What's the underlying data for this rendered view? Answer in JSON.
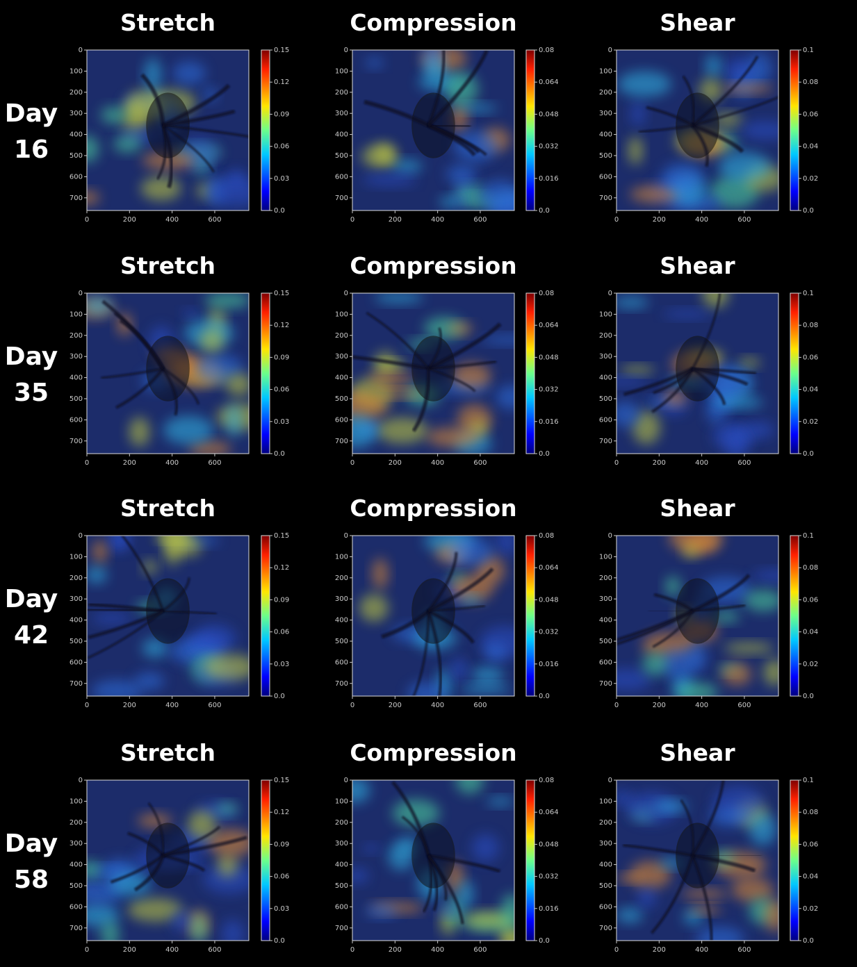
{
  "rows": [
    {
      "label": [
        "Day",
        "16"
      ],
      "panels": [
        {
          "title": "Stretch",
          "xlim": [
            0,
            760
          ],
          "ylim": [
            0,
            760
          ],
          "y_inverted": true,
          "xticks": [
            0,
            200,
            400,
            600
          ],
          "yticks": [
            0,
            100,
            200,
            300,
            400,
            500,
            600,
            700
          ],
          "colorbar_lim": [
            0,
            0.15
          ],
          "colorbar_ticks": [
            {
              "value": 0,
              "label": "0.0"
            },
            0.03,
            0.06,
            0.09,
            0.12,
            0.15
          ]
        },
        {
          "title": "Compression",
          "xlim": [
            0,
            760
          ],
          "ylim": [
            0,
            760
          ],
          "y_inverted": true,
          "xticks": [
            0,
            200,
            400,
            600
          ],
          "yticks": [
            0,
            100,
            200,
            300,
            400,
            500,
            600,
            700
          ],
          "colorbar_lim": [
            0,
            0.08
          ],
          "colorbar_ticks": [
            {
              "value": 0,
              "label": "0.0"
            },
            0.016,
            0.032,
            0.048,
            0.064,
            0.08
          ]
        },
        {
          "title": "Shear",
          "xlim": [
            0,
            760
          ],
          "ylim": [
            0,
            760
          ],
          "y_inverted": true,
          "xticks": [
            0,
            200,
            400,
            600
          ],
          "yticks": [
            0,
            100,
            200,
            300,
            400,
            500,
            600,
            700
          ],
          "colorbar_lim": [
            0,
            0.1
          ],
          "colorbar_ticks": [
            {
              "value": 0,
              "label": "0.0"
            },
            0.02,
            0.04,
            0.06,
            0.08,
            0.1
          ]
        }
      ]
    },
    {
      "label": [
        "Day",
        "35"
      ],
      "panels": [
        {
          "title": "Stretch",
          "xlim": [
            0,
            760
          ],
          "ylim": [
            0,
            760
          ],
          "y_inverted": true,
          "xticks": [
            0,
            200,
            400,
            600
          ],
          "yticks": [
            0,
            100,
            200,
            300,
            400,
            500,
            600,
            700
          ],
          "colorbar_lim": [
            0,
            0.15
          ],
          "colorbar_ticks": [
            {
              "value": 0,
              "label": "0.0"
            },
            0.03,
            0.06,
            0.09,
            0.12,
            0.15
          ]
        },
        {
          "title": "Compression",
          "xlim": [
            0,
            760
          ],
          "ylim": [
            0,
            760
          ],
          "y_inverted": true,
          "xticks": [
            0,
            200,
            400,
            600
          ],
          "yticks": [
            0,
            100,
            200,
            300,
            400,
            500,
            600,
            700
          ],
          "colorbar_lim": [
            0,
            0.08
          ],
          "colorbar_ticks": [
            {
              "value": 0,
              "label": "0.0"
            },
            0.016,
            0.032,
            0.048,
            0.064,
            0.08
          ]
        },
        {
          "title": "Shear",
          "xlim": [
            0,
            760
          ],
          "ylim": [
            0,
            760
          ],
          "y_inverted": true,
          "xticks": [
            0,
            200,
            400,
            600
          ],
          "yticks": [
            0,
            100,
            200,
            300,
            400,
            500,
            600,
            700
          ],
          "colorbar_lim": [
            0,
            0.1
          ],
          "colorbar_ticks": [
            {
              "value": 0,
              "label": "0.0"
            },
            0.02,
            0.04,
            0.06,
            0.08,
            0.1
          ]
        }
      ]
    },
    {
      "label": [
        "Day",
        "42"
      ],
      "panels": [
        {
          "title": "Stretch",
          "xlim": [
            0,
            760
          ],
          "ylim": [
            0,
            760
          ],
          "y_inverted": true,
          "xticks": [
            0,
            200,
            400,
            600
          ],
          "yticks": [
            0,
            100,
            200,
            300,
            400,
            500,
            600,
            700
          ],
          "colorbar_lim": [
            0,
            0.15
          ],
          "colorbar_ticks": [
            {
              "value": 0,
              "label": "0.0"
            },
            0.03,
            0.06,
            0.09,
            0.12,
            0.15
          ]
        },
        {
          "title": "Compression",
          "xlim": [
            0,
            760
          ],
          "ylim": [
            0,
            760
          ],
          "y_inverted": true,
          "xticks": [
            0,
            200,
            400,
            600
          ],
          "yticks": [
            0,
            100,
            200,
            300,
            400,
            500,
            600,
            700
          ],
          "colorbar_lim": [
            0,
            0.08
          ],
          "colorbar_ticks": [
            {
              "value": 0,
              "label": "0.0"
            },
            0.016,
            0.032,
            0.048,
            0.064,
            0.08
          ]
        },
        {
          "title": "Shear",
          "xlim": [
            0,
            760
          ],
          "ylim": [
            0,
            760
          ],
          "y_inverted": true,
          "xticks": [
            0,
            200,
            400,
            600
          ],
          "yticks": [
            0,
            100,
            200,
            300,
            400,
            500,
            600,
            700
          ],
          "colorbar_lim": [
            0,
            0.1
          ],
          "colorbar_ticks": [
            {
              "value": 0,
              "label": "0.0"
            },
            0.02,
            0.04,
            0.06,
            0.08,
            0.1
          ]
        }
      ]
    },
    {
      "label": [
        "Day",
        "58"
      ],
      "panels": [
        {
          "title": "Stretch",
          "xlim": [
            0,
            760
          ],
          "ylim": [
            0,
            760
          ],
          "y_inverted": true,
          "xticks": [
            0,
            200,
            400,
            600
          ],
          "yticks": [
            0,
            100,
            200,
            300,
            400,
            500,
            600,
            700
          ],
          "colorbar_lim": [
            0,
            0.15
          ],
          "colorbar_ticks": [
            {
              "value": 0,
              "label": "0.0"
            },
            0.03,
            0.06,
            0.09,
            0.12,
            0.15
          ]
        },
        {
          "title": "Compression",
          "xlim": [
            0,
            760
          ],
          "ylim": [
            0,
            760
          ],
          "y_inverted": true,
          "xticks": [
            0,
            200,
            400,
            600
          ],
          "yticks": [
            0,
            100,
            200,
            300,
            400,
            500,
            600,
            700
          ],
          "colorbar_lim": [
            0,
            0.08
          ],
          "colorbar_ticks": [
            {
              "value": 0,
              "label": "0.0"
            },
            0.016,
            0.032,
            0.048,
            0.064,
            0.08
          ]
        },
        {
          "title": "Shear",
          "xlim": [
            0,
            760
          ],
          "ylim": [
            0,
            760
          ],
          "y_inverted": true,
          "xticks": [
            0,
            200,
            400,
            600
          ],
          "yticks": [
            0,
            100,
            200,
            300,
            400,
            500,
            600,
            700
          ],
          "colorbar_lim": [
            0,
            0.1
          ],
          "colorbar_ticks": [
            {
              "value": 0,
              "label": "0.0"
            },
            0.02,
            0.04,
            0.06,
            0.08,
            0.1
          ]
        }
      ]
    }
  ]
}
